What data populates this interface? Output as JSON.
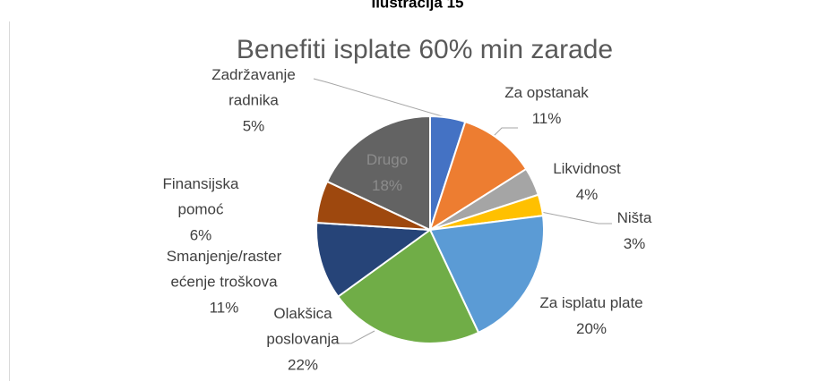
{
  "caption": "Ilustracija 15",
  "chart_data": {
    "type": "pie",
    "title": "Benefiti isplate 60% min zarade",
    "categories": [
      "Zadržavanje\nradnika",
      "Za opstanak",
      "Likvidnost",
      "Ništa",
      "Za isplatu plate",
      "Olakšica\nposlovanja",
      "Smanjenje/raster\nećenje troškova",
      "Finansijska\npomoć",
      "Drugo"
    ],
    "values": [
      5,
      11,
      4,
      3,
      20,
      22,
      11,
      6,
      18
    ],
    "value_labels": [
      "5%",
      "11%",
      "4%",
      "3%",
      "20%",
      "22%",
      "11%",
      "6%",
      "18%"
    ],
    "colors": [
      "#4472c4",
      "#ed7d31",
      "#a5a5a5",
      "#ffc000",
      "#5b9bd5",
      "#70ad47",
      "#264478",
      "#9e480e",
      "#636363"
    ]
  }
}
